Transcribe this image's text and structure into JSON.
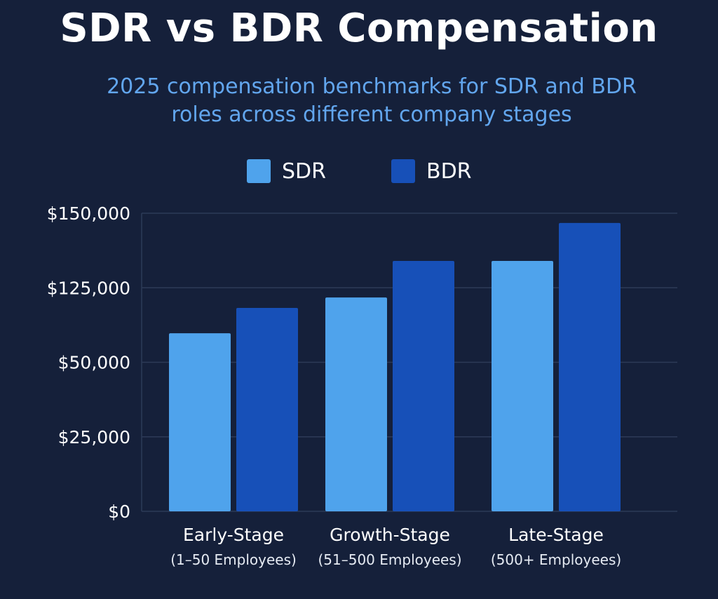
{
  "title": "SDR vs BDR Compensation",
  "subtitle_lines": [
    "2025 compensation benchmarks for SDR and BDR",
    "roles across different company stages"
  ],
  "colors": {
    "background": "#15203a",
    "grid": "#2d3a57",
    "SDR": "#4fa3ec",
    "BDR": "#1750b8"
  },
  "chart_data": {
    "type": "bar",
    "title": "SDR vs BDR Compensation",
    "subtitle": "2025 compensation benchmarks for SDR and BDR roles across different company stages",
    "xlabel": "",
    "ylabel": "",
    "grid": true,
    "legend_position": "top-center",
    "categories": [
      {
        "label": "Early-Stage",
        "sublabel": "(1–50 Employees)"
      },
      {
        "label": "Growth-Stage",
        "sublabel": "(51–500 Employees)"
      },
      {
        "label": "Late-Stage",
        "sublabel": "(500+ Employees)"
      }
    ],
    "y_ticks": [
      "$0",
      "$25,000",
      "$50,000",
      "$125,000",
      "$150,000"
    ],
    "y_tick_positions": [
      0,
      1,
      2,
      3,
      4
    ],
    "ylim": [
      0,
      4
    ],
    "series": [
      {
        "name": "SDR",
        "values": [
          2.39,
          2.87,
          3.36
        ]
      },
      {
        "name": "BDR",
        "values": [
          2.73,
          3.36,
          3.87
        ]
      }
    ]
  }
}
